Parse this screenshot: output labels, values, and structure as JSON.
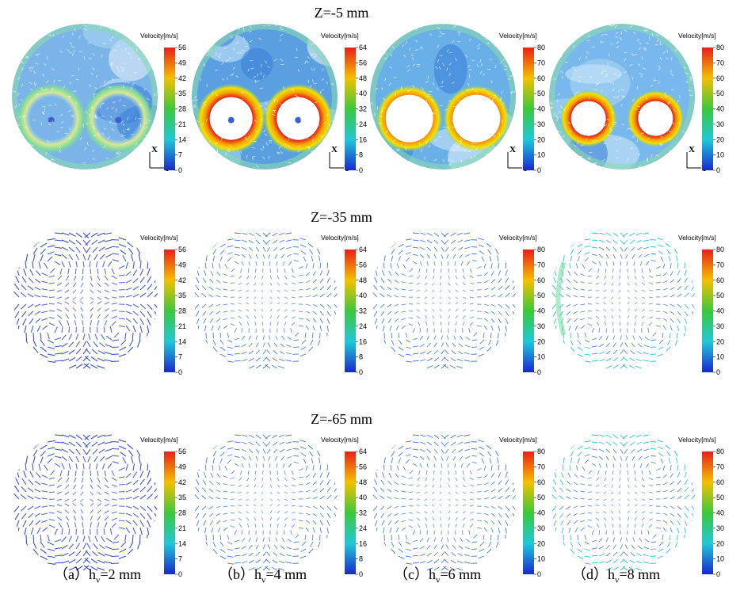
{
  "colorbar_title": "Velocity[m/s]",
  "axis_x_label": "X",
  "axis_y_label": "Y",
  "rows": [
    {
      "title": "Z=-5 mm",
      "type": "contour"
    },
    {
      "title": "Z=-35 mm",
      "type": "vector"
    },
    {
      "title": "Z=-65 mm",
      "type": "vector"
    }
  ],
  "columns": [
    {
      "caption_prefix": "（a）h",
      "caption_sub": "v",
      "caption_suffix": "=2 mm",
      "scale_ticks": [
        "56",
        "49",
        "42",
        "35",
        "28",
        "21",
        "14",
        "7",
        "0"
      ]
    },
    {
      "caption_prefix": "（b）h",
      "caption_sub": "v",
      "caption_suffix": "=4 mm",
      "scale_ticks": [
        "64",
        "56",
        "48",
        "40",
        "32",
        "24",
        "16",
        "8",
        "0"
      ]
    },
    {
      "caption_prefix": "（c）h",
      "caption_sub": "v",
      "caption_suffix": "=6 mm",
      "scale_ticks": [
        "80",
        "70",
        "60",
        "50",
        "40",
        "30",
        "20",
        "10",
        "0"
      ]
    },
    {
      "caption_prefix": "（d）h",
      "caption_sub": "v",
      "caption_suffix": "=8 mm",
      "scale_ticks": [
        "80",
        "70",
        "60",
        "50",
        "40",
        "30",
        "20",
        "10",
        "0"
      ]
    }
  ],
  "colors": {
    "scale_top": "#e8201a",
    "scale_mid_high": "#f5c000",
    "scale_mid": "#3cc83c",
    "scale_mid_low": "#20c8d8",
    "scale_bottom": "#1a28d0",
    "arrow": "#2a40c8"
  }
}
